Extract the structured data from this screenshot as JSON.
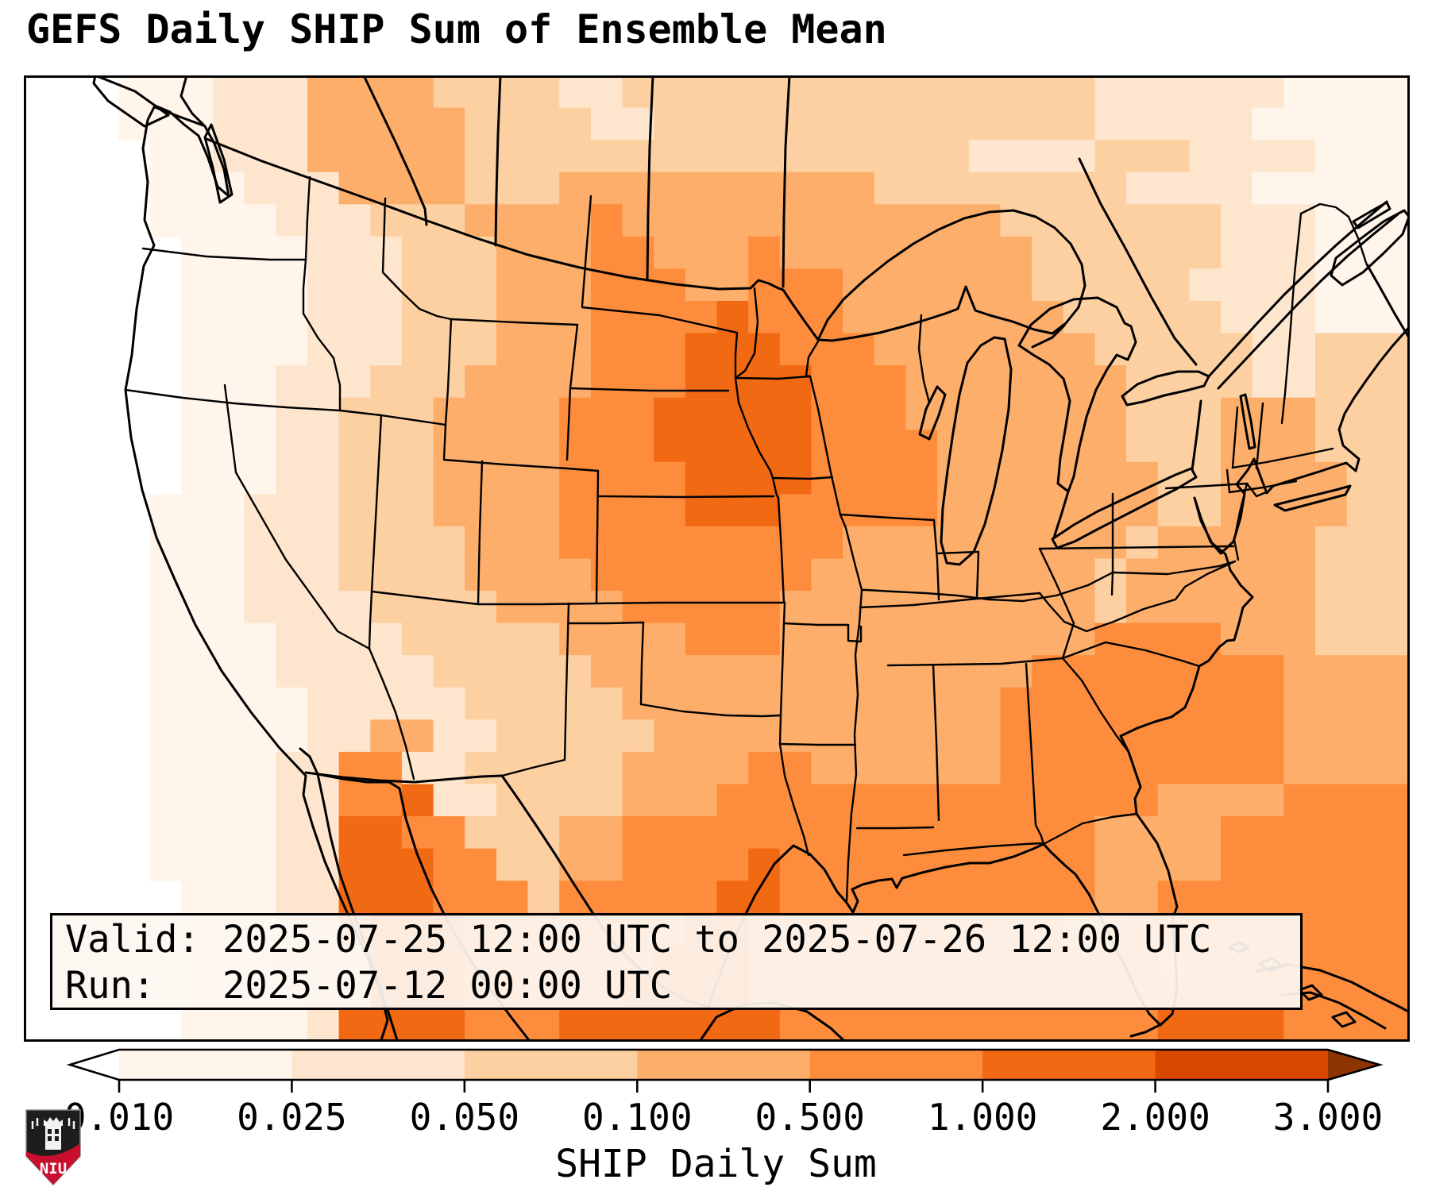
{
  "title": "GEFS Daily SHIP Sum of Ensemble Mean",
  "info_box": {
    "valid_line": "Valid: 2025-07-25 12:00 UTC to 2025-07-26 12:00 UTC",
    "run_line": "Run:   2025-07-12 00:00 UTC"
  },
  "colorbar": {
    "label": "SHIP Daily Sum",
    "tick_labels": [
      "0.010",
      "0.025",
      "0.050",
      "0.100",
      "0.500",
      "1.000",
      "2.000",
      "3.000"
    ],
    "segment_colors": [
      "#fff5eb",
      "#fee6ce",
      "#fdd0a2",
      "#fdae6b",
      "#fd8d3c",
      "#f16913",
      "#d94801"
    ],
    "under_color": "#ffffff",
    "over_color": "#8c3503",
    "outline_color": "#000000"
  },
  "heatmap": {
    "cols": 44,
    "rows": 30,
    "palette": [
      "#ffffff",
      "#fff5eb",
      "#fee6ce",
      "#fdd0a2",
      "#fdae6b",
      "#fd8d3c",
      "#f16913",
      "#d94801"
    ],
    "rows_rle": [
      [
        [
          0,
          3
        ],
        [
          1,
          3
        ],
        [
          2,
          3
        ],
        [
          4,
          4
        ],
        [
          3,
          4
        ],
        [
          2,
          2
        ],
        [
          3,
          15
        ],
        [
          2,
          6
        ],
        [
          1,
          4
        ]
      ],
      [
        [
          0,
          3
        ],
        [
          1,
          3
        ],
        [
          2,
          3
        ],
        [
          4,
          5
        ],
        [
          3,
          4
        ],
        [
          2,
          2
        ],
        [
          3,
          14
        ],
        [
          2,
          5
        ],
        [
          1,
          5
        ]
      ],
      [
        [
          0,
          4
        ],
        [
          1,
          2
        ],
        [
          2,
          3
        ],
        [
          4,
          5
        ],
        [
          3,
          16
        ],
        [
          2,
          4
        ],
        [
          3,
          3
        ],
        [
          2,
          4
        ],
        [
          1,
          3
        ]
      ],
      [
        [
          0,
          4
        ],
        [
          1,
          3
        ],
        [
          2,
          3
        ],
        [
          4,
          4
        ],
        [
          3,
          3
        ],
        [
          4,
          10
        ],
        [
          3,
          8
        ],
        [
          2,
          4
        ],
        [
          1,
          5
        ]
      ],
      [
        [
          0,
          4
        ],
        [
          1,
          4
        ],
        [
          2,
          3
        ],
        [
          3,
          3
        ],
        [
          4,
          4
        ],
        [
          5,
          1
        ],
        [
          4,
          12
        ],
        [
          3,
          7
        ],
        [
          2,
          3
        ],
        [
          1,
          3
        ]
      ],
      [
        [
          0,
          5
        ],
        [
          1,
          4
        ],
        [
          2,
          3
        ],
        [
          3,
          3
        ],
        [
          4,
          3
        ],
        [
          5,
          2
        ],
        [
          4,
          3
        ],
        [
          5,
          1
        ],
        [
          4,
          8
        ],
        [
          3,
          6
        ],
        [
          2,
          3
        ],
        [
          1,
          3
        ]
      ],
      [
        [
          0,
          5
        ],
        [
          1,
          4
        ],
        [
          2,
          3
        ],
        [
          3,
          3
        ],
        [
          4,
          3
        ],
        [
          5,
          3
        ],
        [
          4,
          2
        ],
        [
          5,
          3
        ],
        [
          4,
          6
        ],
        [
          3,
          5
        ],
        [
          2,
          4
        ],
        [
          1,
          3
        ]
      ],
      [
        [
          0,
          5
        ],
        [
          1,
          4
        ],
        [
          2,
          3
        ],
        [
          3,
          3
        ],
        [
          4,
          3
        ],
        [
          5,
          4
        ],
        [
          6,
          1
        ],
        [
          5,
          3
        ],
        [
          4,
          7
        ],
        [
          3,
          5
        ],
        [
          2,
          3
        ],
        [
          1,
          3
        ]
      ],
      [
        [
          0,
          5
        ],
        [
          1,
          4
        ],
        [
          2,
          3
        ],
        [
          3,
          3
        ],
        [
          4,
          3
        ],
        [
          5,
          3
        ],
        [
          6,
          3
        ],
        [
          5,
          3
        ],
        [
          4,
          7
        ],
        [
          3,
          5
        ],
        [
          2,
          2
        ],
        [
          3,
          3
        ]
      ],
      [
        [
          0,
          5
        ],
        [
          1,
          3
        ],
        [
          2,
          3
        ],
        [
          3,
          3
        ],
        [
          4,
          4
        ],
        [
          5,
          3
        ],
        [
          6,
          4
        ],
        [
          5,
          3
        ],
        [
          4,
          7
        ],
        [
          3,
          4
        ],
        [
          2,
          2
        ],
        [
          3,
          3
        ]
      ],
      [
        [
          0,
          5
        ],
        [
          1,
          3
        ],
        [
          2,
          2
        ],
        [
          3,
          3
        ],
        [
          4,
          4
        ],
        [
          5,
          3
        ],
        [
          6,
          5
        ],
        [
          5,
          3
        ],
        [
          4,
          7
        ],
        [
          3,
          3
        ],
        [
          4,
          3
        ],
        [
          3,
          3
        ]
      ],
      [
        [
          0,
          5
        ],
        [
          1,
          3
        ],
        [
          2,
          2
        ],
        [
          3,
          3
        ],
        [
          4,
          4
        ],
        [
          5,
          3
        ],
        [
          6,
          5
        ],
        [
          5,
          4
        ],
        [
          4,
          6
        ],
        [
          3,
          3
        ],
        [
          4,
          3
        ],
        [
          3,
          3
        ]
      ],
      [
        [
          0,
          5
        ],
        [
          1,
          3
        ],
        [
          2,
          2
        ],
        [
          3,
          3
        ],
        [
          4,
          4
        ],
        [
          5,
          4
        ],
        [
          6,
          4
        ],
        [
          5,
          4
        ],
        [
          4,
          7
        ],
        [
          3,
          2
        ],
        [
          4,
          4
        ],
        [
          3,
          2
        ]
      ],
      [
        [
          0,
          4
        ],
        [
          1,
          3
        ],
        [
          2,
          3
        ],
        [
          3,
          3
        ],
        [
          4,
          4
        ],
        [
          5,
          4
        ],
        [
          6,
          3
        ],
        [
          5,
          5
        ],
        [
          4,
          7
        ],
        [
          3,
          2
        ],
        [
          4,
          4
        ],
        [
          3,
          2
        ]
      ],
      [
        [
          0,
          4
        ],
        [
          1,
          3
        ],
        [
          2,
          3
        ],
        [
          3,
          4
        ],
        [
          4,
          3
        ],
        [
          5,
          9
        ],
        [
          4,
          9
        ],
        [
          3,
          1
        ],
        [
          4,
          5
        ],
        [
          3,
          3
        ]
      ],
      [
        [
          0,
          4
        ],
        [
          1,
          3
        ],
        [
          2,
          3
        ],
        [
          3,
          4
        ],
        [
          4,
          4
        ],
        [
          5,
          7
        ],
        [
          4,
          9
        ],
        [
          3,
          1
        ],
        [
          4,
          6
        ],
        [
          3,
          3
        ]
      ],
      [
        [
          0,
          4
        ],
        [
          1,
          3
        ],
        [
          2,
          4
        ],
        [
          3,
          4
        ],
        [
          4,
          4
        ],
        [
          5,
          5
        ],
        [
          4,
          10
        ],
        [
          3,
          1
        ],
        [
          4,
          6
        ],
        [
          3,
          3
        ]
      ],
      [
        [
          0,
          4
        ],
        [
          1,
          4
        ],
        [
          2,
          4
        ],
        [
          3,
          5
        ],
        [
          4,
          4
        ],
        [
          5,
          3
        ],
        [
          4,
          10
        ],
        [
          5,
          4
        ],
        [
          4,
          3
        ],
        [
          3,
          3
        ]
      ],
      [
        [
          0,
          4
        ],
        [
          1,
          4
        ],
        [
          2,
          5
        ],
        [
          3,
          5
        ],
        [
          4,
          14
        ],
        [
          5,
          8
        ],
        [
          4,
          4
        ]
      ],
      [
        [
          0,
          4
        ],
        [
          1,
          5
        ],
        [
          2,
          5
        ],
        [
          3,
          5
        ],
        [
          4,
          12
        ],
        [
          5,
          9
        ],
        [
          4,
          4
        ]
      ],
      [
        [
          0,
          4
        ],
        [
          1,
          5
        ],
        [
          2,
          2
        ],
        [
          4,
          2
        ],
        [
          2,
          2
        ],
        [
          3,
          5
        ],
        [
          4,
          11
        ],
        [
          5,
          9
        ],
        [
          4,
          4
        ]
      ],
      [
        [
          0,
          4
        ],
        [
          1,
          4
        ],
        [
          2,
          2
        ],
        [
          5,
          2
        ],
        [
          2,
          2
        ],
        [
          3,
          5
        ],
        [
          4,
          4
        ],
        [
          5,
          2
        ],
        [
          4,
          6
        ],
        [
          5,
          9
        ],
        [
          4,
          4
        ]
      ],
      [
        [
          0,
          4
        ],
        [
          1,
          4
        ],
        [
          2,
          2
        ],
        [
          5,
          2
        ],
        [
          6,
          1
        ],
        [
          2,
          2
        ],
        [
          3,
          4
        ],
        [
          4,
          3
        ],
        [
          5,
          14
        ],
        [
          4,
          4
        ],
        [
          5,
          4
        ]
      ],
      [
        [
          0,
          4
        ],
        [
          1,
          4
        ],
        [
          2,
          2
        ],
        [
          6,
          2
        ],
        [
          5,
          2
        ],
        [
          3,
          3
        ],
        [
          4,
          2
        ],
        [
          5,
          15
        ],
        [
          4,
          4
        ],
        [
          5,
          6
        ]
      ],
      [
        [
          0,
          4
        ],
        [
          1,
          4
        ],
        [
          2,
          2
        ],
        [
          6,
          3
        ],
        [
          5,
          2
        ],
        [
          3,
          2
        ],
        [
          4,
          2
        ],
        [
          5,
          4
        ],
        [
          6,
          1
        ],
        [
          5,
          10
        ],
        [
          4,
          4
        ],
        [
          5,
          6
        ]
      ],
      [
        [
          0,
          5
        ],
        [
          1,
          3
        ],
        [
          2,
          2
        ],
        [
          6,
          3
        ],
        [
          5,
          3
        ],
        [
          3,
          1
        ],
        [
          5,
          5
        ],
        [
          6,
          2
        ],
        [
          5,
          10
        ],
        [
          4,
          2
        ],
        [
          5,
          8
        ]
      ],
      [
        [
          0,
          5
        ],
        [
          1,
          3
        ],
        [
          2,
          2
        ],
        [
          5,
          1
        ],
        [
          6,
          3
        ],
        [
          5,
          7
        ],
        [
          6,
          2
        ],
        [
          5,
          10
        ],
        [
          4,
          2
        ],
        [
          5,
          9
        ]
      ],
      [
        [
          0,
          5
        ],
        [
          1,
          3
        ],
        [
          2,
          3
        ],
        [
          6,
          3
        ],
        [
          5,
          6
        ],
        [
          6,
          3
        ],
        [
          5,
          13
        ],
        [
          4,
          1
        ],
        [
          5,
          7
        ]
      ],
      [
        [
          0,
          5
        ],
        [
          1,
          4
        ],
        [
          2,
          2
        ],
        [
          6,
          3
        ],
        [
          5,
          5
        ],
        [
          6,
          4
        ],
        [
          5,
          21
        ]
      ],
      [
        [
          0,
          5
        ],
        [
          1,
          4
        ],
        [
          2,
          1
        ],
        [
          6,
          4
        ],
        [
          5,
          3
        ],
        [
          6,
          7
        ],
        [
          5,
          12
        ],
        [
          6,
          4
        ],
        [
          5,
          4
        ]
      ]
    ]
  },
  "logo": {
    "text": "NIU",
    "shield_top_color": "#1d1d1b",
    "shield_band_color": "#c8102e"
  }
}
